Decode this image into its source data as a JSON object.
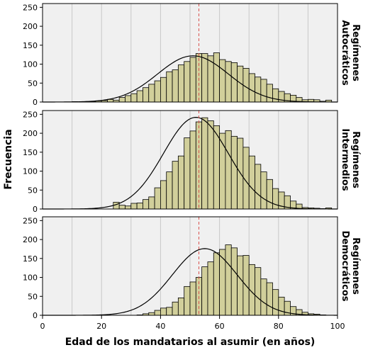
{
  "chart_data": {
    "type": "bar",
    "xlabel": "Edad de los mandatarios al asumir (en años)",
    "ylabel": "Frecuencia",
    "xlim": [
      0,
      100
    ],
    "xticks": [
      "0",
      "20",
      "40",
      "60",
      "80",
      "100"
    ],
    "yticks": [
      "0",
      "50",
      "100",
      "150",
      "200",
      "250"
    ],
    "ylim": [
      0,
      260
    ],
    "bin_width": 2,
    "bin_start": 10,
    "reference_line_x": 53,
    "colors": {
      "bar_fill": "#d1cf9b",
      "bar_stroke": "#000000",
      "panel_bg": "#f0f0f0",
      "grid": "#c8c8c8",
      "ref_line": "#d9534f",
      "curve": "#000000"
    },
    "panels": [
      {
        "label_line1": "Regímenes",
        "label_line2": "Autocráticos",
        "curve_mean": 51,
        "curve_sd": 12,
        "curve_peak": 122,
        "values": [
          1,
          0,
          1,
          2,
          3,
          4,
          7,
          5,
          12,
          17,
          22,
          30,
          38,
          47,
          56,
          65,
          80,
          85,
          98,
          107,
          118,
          128,
          128,
          122,
          130,
          112,
          107,
          104,
          95,
          89,
          75,
          66,
          60,
          47,
          35,
          28,
          22,
          18,
          12,
          6,
          7,
          6,
          2,
          5
        ]
      },
      {
        "label_line1": "Regímenes",
        "label_line2": "Intermedios",
        "curve_mean": 52,
        "curve_sd": 11,
        "curve_peak": 242,
        "values": [
          0,
          0,
          0,
          0,
          0,
          0,
          0,
          18,
          10,
          8,
          15,
          16,
          25,
          32,
          56,
          75,
          98,
          126,
          140,
          188,
          206,
          230,
          241,
          233,
          220,
          200,
          207,
          192,
          187,
          163,
          140,
          118,
          98,
          78,
          54,
          45,
          35,
          21,
          13,
          4,
          3,
          2,
          1,
          3
        ]
      },
      {
        "label_line1": "Regímenes",
        "label_line2": "Democráticos",
        "curve_mean": 55,
        "curve_sd": 11,
        "curve_peak": 176,
        "values": [
          0,
          0,
          0,
          0,
          0,
          0,
          0,
          0,
          0,
          0,
          0,
          1,
          4,
          7,
          13,
          19,
          21,
          35,
          46,
          76,
          88,
          100,
          128,
          141,
          165,
          174,
          186,
          178,
          157,
          158,
          134,
          126,
          96,
          86,
          68,
          48,
          37,
          23,
          15,
          8,
          4,
          3,
          1,
          0
        ]
      }
    ]
  }
}
